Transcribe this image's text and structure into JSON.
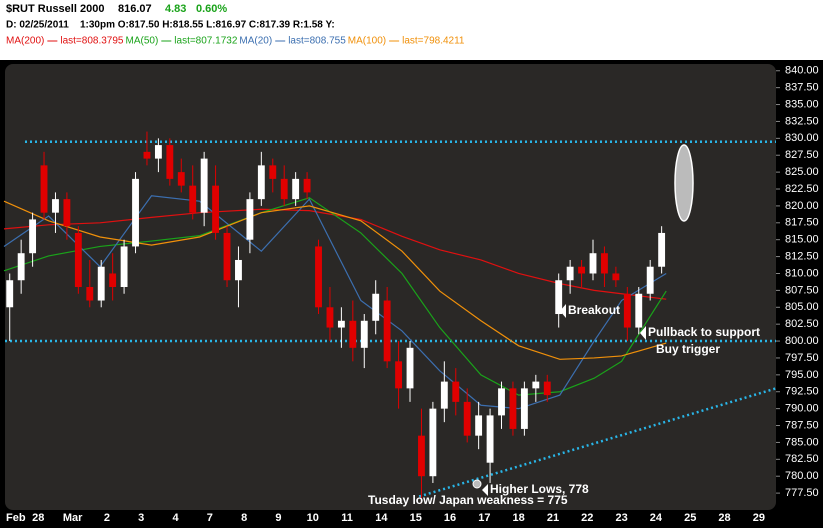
{
  "chart_data": {
    "type": "candlestick",
    "title": "$RUT Russell 2000",
    "last": "816.07",
    "change": "4.83",
    "change_pct": "0.60%",
    "info": "D: 02/25/2011    1:30pm O:817.50 H:818.55 L:816.97 C:817.39 R:1.58 Y:",
    "categories": [
      "Feb",
      "28",
      "Mar",
      "2",
      "3",
      "4",
      "7",
      "8",
      "9",
      "10",
      "11",
      "14",
      "15",
      "16",
      "17",
      "18",
      "21",
      "22",
      "23",
      "24",
      "25",
      "28",
      "29"
    ],
    "xlim": [
      0,
      22.5
    ],
    "ylim": [
      775,
      841
    ],
    "yticks": [
      {
        "value": 777.5,
        "label": "777.50"
      },
      {
        "value": 780,
        "label": "780.00"
      },
      {
        "value": 782.5,
        "label": "782.50"
      },
      {
        "value": 785,
        "label": "785.00"
      },
      {
        "value": 787.5,
        "label": "787.50"
      },
      {
        "value": 790,
        "label": "790.00"
      },
      {
        "value": 792.5,
        "label": "792.50"
      },
      {
        "value": 795,
        "label": "795.00"
      },
      {
        "value": 797.5,
        "label": "797.50"
      },
      {
        "value": 800,
        "label": "800.00"
      },
      {
        "value": 802.5,
        "label": "802.50"
      },
      {
        "value": 805,
        "label": "805.00"
      },
      {
        "value": 807.5,
        "label": "807.50"
      },
      {
        "value": 810,
        "label": "810.00"
      },
      {
        "value": 812.5,
        "label": "812.50"
      },
      {
        "value": 815,
        "label": "815.00"
      },
      {
        "value": 817.5,
        "label": "817.50"
      },
      {
        "value": 820,
        "label": "820.00"
      },
      {
        "value": 822.5,
        "label": "822.50"
      },
      {
        "value": 825,
        "label": "825.00"
      },
      {
        "value": 827.5,
        "label": "827.50"
      },
      {
        "value": 830,
        "label": "830.00"
      },
      {
        "value": 832.5,
        "label": "832.50"
      },
      {
        "value": 835,
        "label": "835.00"
      },
      {
        "value": 837.5,
        "label": "837.50"
      },
      {
        "value": 840,
        "label": "840.00"
      }
    ],
    "up_color": "#ffffff",
    "down_color": "#e00000",
    "open": [
      805,
      809,
      813,
      826,
      819,
      821,
      816,
      808,
      806,
      810,
      808,
      814,
      828,
      827,
      829,
      825,
      823,
      819,
      823,
      816,
      809,
      815,
      821,
      826,
      824,
      821,
      824,
      814,
      805,
      802,
      803,
      799,
      803,
      806,
      797,
      793,
      786,
      780,
      790,
      794,
      791,
      786,
      782,
      789,
      793,
      787,
      793,
      794,
      804,
      809,
      811,
      810,
      813,
      810,
      807,
      802,
      807,
      811
    ],
    "high": [
      810,
      815,
      819,
      828,
      822,
      822,
      817,
      812,
      812,
      813,
      815,
      825,
      831,
      830,
      830,
      827,
      826,
      828,
      826,
      817,
      814,
      822,
      828,
      827,
      826,
      825,
      825,
      815,
      808,
      805,
      806,
      804,
      809,
      808,
      800,
      800,
      790,
      791,
      797,
      796,
      793,
      791,
      790,
      794,
      794,
      794,
      795,
      795,
      810,
      812,
      812,
      815,
      814,
      811,
      808,
      808,
      812,
      817
    ],
    "low": [
      800,
      807,
      811,
      818,
      816,
      815,
      807,
      805,
      805,
      806,
      807,
      813,
      826,
      825,
      823,
      822,
      818,
      817,
      815,
      808,
      805,
      813,
      820,
      822,
      820,
      820,
      821,
      804,
      800,
      799,
      797,
      796,
      801,
      796,
      790,
      791,
      776,
      779,
      788,
      789,
      785,
      784,
      779,
      787,
      786,
      786,
      791,
      791,
      802,
      807,
      808,
      809,
      808,
      808,
      800,
      801,
      806,
      810
    ],
    "close": [
      809,
      813,
      818,
      819,
      821,
      817,
      808,
      806,
      811,
      808,
      814,
      824,
      827,
      829,
      824,
      823,
      819,
      827,
      816,
      809,
      812,
      821,
      826,
      824,
      821,
      824,
      822,
      805,
      802,
      803,
      799,
      803,
      807,
      797,
      793,
      799,
      780,
      790,
      794,
      791,
      786,
      789,
      789,
      793,
      787,
      793,
      794,
      792,
      809,
      811,
      810,
      813,
      810,
      809,
      802,
      807,
      811,
      816
    ],
    "series": [
      {
        "name": "MA(200)",
        "legend_text": "last=808.3795",
        "color": "#e01010",
        "x": [
          0,
          1.3,
          2.8,
          4.3,
          5.7,
          7.5,
          8.9,
          10.4,
          11.6,
          12.7,
          13.9,
          15,
          16.2,
          17.2,
          18,
          19.3
        ],
        "values": [
          816.6,
          817.2,
          817.5,
          818.3,
          819,
          819.5,
          819.3,
          818,
          815.5,
          813.5,
          812,
          810,
          808.5,
          807.5,
          807,
          806.2
        ]
      },
      {
        "name": "MA(50)",
        "legend_text": "last=807.1732",
        "color": "#1aa31a",
        "x": [
          0,
          1.3,
          2.8,
          4.3,
          5.7,
          7.5,
          8.9,
          10.4,
          11.6,
          12.7,
          13.9,
          15,
          16.2,
          17.2,
          18,
          19.3
        ],
        "values": [
          810.4,
          812.6,
          814,
          814.8,
          815.6,
          819,
          821.2,
          816,
          810,
          802,
          795,
          792,
          792.5,
          794.5,
          797,
          807.4
        ]
      },
      {
        "name": "MA(20)",
        "legend_text": "last=808.755",
        "color": "#3c6fb0",
        "x": [
          0,
          1.3,
          2.8,
          4.3,
          5.7,
          7.5,
          8.9,
          10.4,
          11.6,
          12.7,
          13.9,
          15,
          16.2,
          17.2,
          18,
          19.3
        ],
        "values": [
          814,
          818.5,
          811,
          821.5,
          820.7,
          813.3,
          821,
          806,
          801.5,
          795.6,
          790.5,
          790,
          792,
          800,
          806,
          810
        ]
      },
      {
        "name": "MA(100)",
        "legend_text": "last=798.4211",
        "color": "#f0900a",
        "x": [
          0,
          1.3,
          2.8,
          4.3,
          5.7,
          7.5,
          8.9,
          10.4,
          11.6,
          12.7,
          13.9,
          15,
          16.2,
          17.2,
          18,
          19.3
        ],
        "values": [
          820.7,
          817.8,
          815.4,
          814.2,
          815.4,
          819,
          820,
          817.8,
          813.3,
          807.4,
          803,
          799.3,
          797.3,
          797.5,
          797.8,
          799.7
        ]
      }
    ],
    "levels": [
      829.5,
      800
    ],
    "trendline": {
      "x": [
        12.1,
        22.5
      ],
      "values": [
        777,
        793
      ]
    },
    "annotations": [
      "Breakout",
      "Pullback to support",
      "Buy trigger",
      "Higher Lows, 778",
      "Tusday low/ Japan weakness = 775"
    ]
  }
}
